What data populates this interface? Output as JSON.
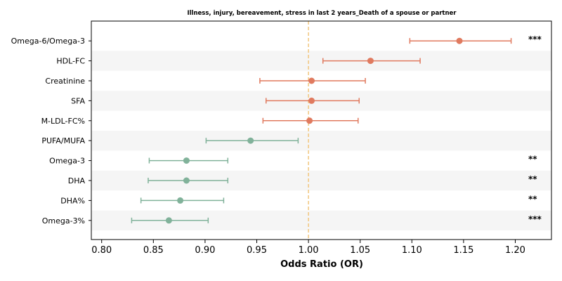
{
  "chart_data": {
    "type": "forest",
    "title": "Illness, injury, bereavement, stress in last 2 years_Death of a spouse or partner",
    "xlabel": "Odds Ratio (OR)",
    "xlim": [
      0.79,
      1.235
    ],
    "xticks": [
      "0.80",
      "0.85",
      "0.90",
      "0.95",
      "1.00",
      "1.05",
      "1.10",
      "1.15",
      "1.20"
    ],
    "reference_line": 1.0,
    "colors": {
      "positive": "#e07a5f",
      "negative": "#81b29a",
      "reference": "#f2c57c",
      "stripe": "#f5f5f5"
    },
    "rows": [
      {
        "label": "Omega-6/Omega-3",
        "or": 1.146,
        "lower": 1.098,
        "upper": 1.196,
        "sig": "***"
      },
      {
        "label": "HDL-FC",
        "or": 1.06,
        "lower": 1.014,
        "upper": 1.108,
        "sig": ""
      },
      {
        "label": "Creatinine",
        "or": 1.003,
        "lower": 0.953,
        "upper": 1.055,
        "sig": ""
      },
      {
        "label": "SFA",
        "or": 1.003,
        "lower": 0.959,
        "upper": 1.049,
        "sig": ""
      },
      {
        "label": "M-LDL-FC%",
        "or": 1.001,
        "lower": 0.956,
        "upper": 1.048,
        "sig": ""
      },
      {
        "label": "PUFA/MUFA",
        "or": 0.944,
        "lower": 0.901,
        "upper": 0.99,
        "sig": ""
      },
      {
        "label": "Omega-3",
        "or": 0.882,
        "lower": 0.846,
        "upper": 0.922,
        "sig": "**"
      },
      {
        "label": "DHA",
        "or": 0.882,
        "lower": 0.845,
        "upper": 0.922,
        "sig": "**"
      },
      {
        "label": "DHA%",
        "or": 0.876,
        "lower": 0.838,
        "upper": 0.918,
        "sig": "**"
      },
      {
        "label": "Omega-3%",
        "or": 0.865,
        "lower": 0.829,
        "upper": 0.903,
        "sig": "***"
      }
    ]
  }
}
